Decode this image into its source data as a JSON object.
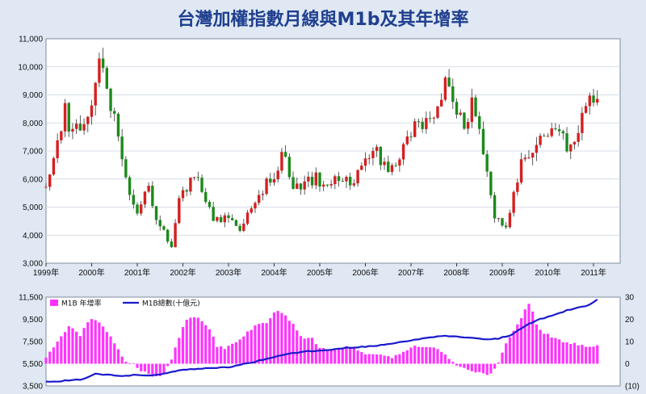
{
  "title": "台灣加權指數月線與M1b及其年增率",
  "colors": {
    "up": "#d42020",
    "down": "#1b8a1b",
    "wick": "#333333",
    "bar": "#ff33ff",
    "line": "#1a1acc",
    "neg": "#cc3344"
  },
  "chart_data": [
    {
      "type": "candlestick",
      "x_labels": [
        "1999年",
        "2000年",
        "2001年",
        "2002年",
        "2003年",
        "2004年",
        "2005年",
        "2006年",
        "2007年",
        "2008年",
        "2009年",
        "2010年",
        "2011年"
      ],
      "ylim": [
        3000,
        11000
      ],
      "y_ticks": [
        "3,000",
        "4,000",
        "5,000",
        "6,000",
        "7,000",
        "8,000",
        "9,000",
        "10,000",
        "11,000"
      ],
      "anchors": [
        [
          1999.0,
          5950
        ],
        [
          1999.25,
          7100
        ],
        [
          1999.42,
          8400
        ],
        [
          1999.58,
          7600
        ],
        [
          1999.75,
          7800
        ],
        [
          1999.95,
          8400
        ],
        [
          2000.1,
          9800
        ],
        [
          2000.22,
          9950
        ],
        [
          2000.4,
          8700
        ],
        [
          2000.55,
          8100
        ],
        [
          2000.7,
          6400
        ],
        [
          2000.85,
          5400
        ],
        [
          2001.0,
          4700
        ],
        [
          2001.2,
          5800
        ],
        [
          2001.4,
          4700
        ],
        [
          2001.58,
          4300
        ],
        [
          2001.75,
          3600
        ],
        [
          2001.95,
          5500
        ],
        [
          2002.15,
          5900
        ],
        [
          2002.3,
          6100
        ],
        [
          2002.45,
          5500
        ],
        [
          2002.6,
          4800
        ],
        [
          2002.75,
          4600
        ],
        [
          2002.95,
          4500
        ],
        [
          2003.1,
          4400
        ],
        [
          2003.25,
          4200
        ],
        [
          2003.4,
          4700
        ],
        [
          2003.55,
          5300
        ],
        [
          2003.75,
          5700
        ],
        [
          2003.95,
          6000
        ],
        [
          2004.1,
          6500
        ],
        [
          2004.22,
          6900
        ],
        [
          2004.35,
          6000
        ],
        [
          2004.5,
          5600
        ],
        [
          2004.65,
          5800
        ],
        [
          2004.8,
          5900
        ],
        [
          2004.95,
          6000
        ],
        [
          2005.15,
          6000
        ],
        [
          2005.35,
          6100
        ],
        [
          2005.55,
          6200
        ],
        [
          2005.75,
          5900
        ],
        [
          2005.95,
          6400
        ],
        [
          2006.1,
          6600
        ],
        [
          2006.25,
          7000
        ],
        [
          2006.4,
          6400
        ],
        [
          2006.6,
          6500
        ],
        [
          2006.8,
          7000
        ],
        [
          2006.95,
          7800
        ],
        [
          2007.15,
          7800
        ],
        [
          2007.35,
          8100
        ],
        [
          2007.5,
          8300
        ],
        [
          2007.62,
          9000
        ],
        [
          2007.75,
          9600
        ],
        [
          2007.9,
          8500
        ],
        [
          2008.05,
          8300
        ],
        [
          2008.15,
          7800
        ],
        [
          2008.3,
          8600
        ],
        [
          2008.45,
          8400
        ],
        [
          2008.58,
          7100
        ],
        [
          2008.72,
          5600
        ],
        [
          2008.85,
          4600
        ],
        [
          2009.0,
          4300
        ],
        [
          2009.15,
          4600
        ],
        [
          2009.3,
          5800
        ],
        [
          2009.45,
          6700
        ],
        [
          2009.6,
          6800
        ],
        [
          2009.75,
          7500
        ],
        [
          2009.95,
          7800
        ],
        [
          2010.1,
          7600
        ],
        [
          2010.25,
          8000
        ],
        [
          2010.4,
          7200
        ],
        [
          2010.55,
          7400
        ],
        [
          2010.7,
          8000
        ],
        [
          2010.85,
          8300
        ],
        [
          2010.95,
          8800
        ],
        [
          2011.05,
          9100
        ]
      ]
    },
    {
      "type": "bar+line",
      "series": [
        {
          "name": "M1B 年增率"
        },
        {
          "name": "M1B總數(十億元)"
        }
      ],
      "y_left_ticks": [
        "3,500",
        "5,500",
        "7,500",
        "9,500",
        "11,500"
      ],
      "y_left_lim": [
        3500,
        11500
      ],
      "y_right_ticks": [
        "(10)",
        "0",
        "10",
        "20",
        "30"
      ],
      "y_right_lim": [
        -10,
        30
      ],
      "growth_anchors": [
        [
          1999.0,
          3
        ],
        [
          1999.25,
          10
        ],
        [
          1999.5,
          17
        ],
        [
          1999.75,
          13
        ],
        [
          1999.95,
          20
        ],
        [
          2000.1,
          20
        ],
        [
          2000.3,
          16
        ],
        [
          2000.55,
          7
        ],
        [
          2000.75,
          1
        ],
        [
          2000.95,
          0
        ],
        [
          2001.0,
          -2
        ],
        [
          2001.25,
          -5
        ],
        [
          2001.45,
          -6
        ],
        [
          2001.6,
          -4
        ],
        [
          2001.75,
          2
        ],
        [
          2001.95,
          14
        ],
        [
          2002.1,
          20
        ],
        [
          2002.3,
          21
        ],
        [
          2002.55,
          17
        ],
        [
          2002.75,
          8
        ],
        [
          2002.95,
          7
        ],
        [
          2003.1,
          9
        ],
        [
          2003.35,
          13
        ],
        [
          2003.6,
          17
        ],
        [
          2003.85,
          19
        ],
        [
          2004.05,
          24
        ],
        [
          2004.2,
          23
        ],
        [
          2004.45,
          17
        ],
        [
          2004.65,
          11
        ],
        [
          2004.8,
          12
        ],
        [
          2004.95,
          8
        ],
        [
          2005.2,
          6
        ],
        [
          2005.45,
          7
        ],
        [
          2005.7,
          8
        ],
        [
          2005.95,
          5
        ],
        [
          2006.15,
          4
        ],
        [
          2006.35,
          4
        ],
        [
          2006.6,
          3
        ],
        [
          2006.85,
          6
        ],
        [
          2007.1,
          8
        ],
        [
          2007.35,
          8
        ],
        [
          2007.6,
          6
        ],
        [
          2007.8,
          3
        ],
        [
          2007.95,
          0
        ],
        [
          2008.1,
          -2
        ],
        [
          2008.35,
          -3
        ],
        [
          2008.6,
          -5
        ],
        [
          2008.8,
          -4
        ],
        [
          2008.95,
          2
        ],
        [
          2009.1,
          10
        ],
        [
          2009.3,
          17
        ],
        [
          2009.5,
          24
        ],
        [
          2009.6,
          27
        ],
        [
          2009.75,
          18
        ],
        [
          2009.9,
          14
        ],
        [
          2010.1,
          12
        ],
        [
          2010.35,
          10
        ],
        [
          2010.6,
          9
        ],
        [
          2010.85,
          8
        ],
        [
          2011.05,
          8
        ]
      ],
      "total_anchors": [
        [
          1999.0,
          3850
        ],
        [
          1999.5,
          4000
        ],
        [
          1999.8,
          4100
        ],
        [
          2000.1,
          4600
        ],
        [
          2000.3,
          4500
        ],
        [
          2000.7,
          4400
        ],
        [
          2000.95,
          4500
        ],
        [
          2001.25,
          4450
        ],
        [
          2001.6,
          4600
        ],
        [
          2001.85,
          4850
        ],
        [
          2002.1,
          5000
        ],
        [
          2002.6,
          5100
        ],
        [
          2003.0,
          5200
        ],
        [
          2003.2,
          5350
        ],
        [
          2003.5,
          5600
        ],
        [
          2003.9,
          6000
        ],
        [
          2004.3,
          6400
        ],
        [
          2004.7,
          6600
        ],
        [
          2005.1,
          6700
        ],
        [
          2005.5,
          6900
        ],
        [
          2005.8,
          7000
        ],
        [
          2006.2,
          7100
        ],
        [
          2006.6,
          7300
        ],
        [
          2007.0,
          7600
        ],
        [
          2007.4,
          7900
        ],
        [
          2007.8,
          8000
        ],
        [
          2008.2,
          7850
        ],
        [
          2008.6,
          7700
        ],
        [
          2008.9,
          7750
        ],
        [
          2009.2,
          8100
        ],
        [
          2009.5,
          8900
        ],
        [
          2009.8,
          9500
        ],
        [
          2010.1,
          9800
        ],
        [
          2010.4,
          10300
        ],
        [
          2010.7,
          10600
        ],
        [
          2010.9,
          10750
        ],
        [
          2011.05,
          11250
        ]
      ]
    }
  ]
}
